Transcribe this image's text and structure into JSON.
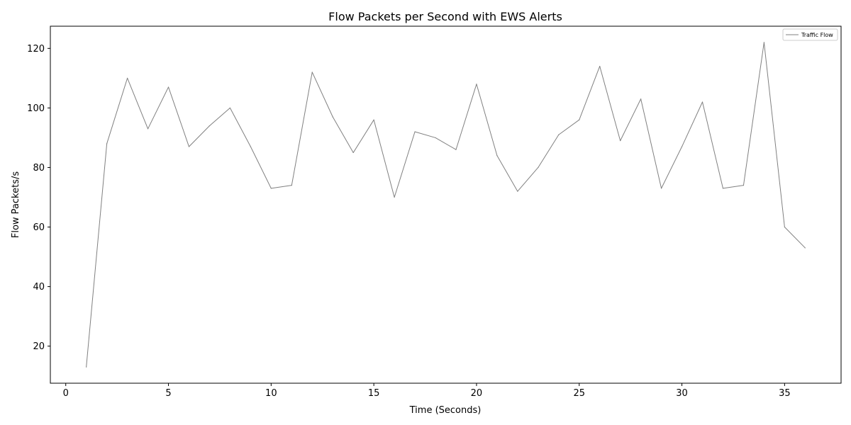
{
  "chart_data": {
    "type": "line",
    "title": "Flow Packets per Second with EWS Alerts",
    "xlabel": "Time (Seconds)",
    "ylabel": "Flow Packets/s",
    "xlim": [
      -0.75,
      37.75
    ],
    "ylim": [
      7.55,
      127.45
    ],
    "xticks": [
      0,
      5,
      10,
      15,
      20,
      25,
      30,
      35
    ],
    "yticks": [
      20,
      40,
      60,
      80,
      100,
      120
    ],
    "grid": false,
    "legend_position": "top-right",
    "series": [
      {
        "name": "Traffic Flow",
        "color": "#808080",
        "x": [
          1,
          2,
          3,
          4,
          5,
          6,
          7,
          8,
          9,
          10,
          11,
          12,
          13,
          14,
          15,
          16,
          17,
          18,
          19,
          20,
          21,
          22,
          23,
          24,
          25,
          26,
          27,
          28,
          29,
          30,
          31,
          32,
          33,
          34,
          35,
          36
        ],
        "y": [
          13,
          88,
          110,
          93,
          107,
          87,
          94,
          100,
          87,
          73,
          74,
          112,
          97,
          85,
          96,
          70,
          92,
          90,
          86,
          108,
          84,
          72,
          80,
          91,
          96,
          114,
          89,
          103,
          73,
          87,
          102,
          73,
          74,
          122,
          60,
          53
        ]
      }
    ]
  }
}
